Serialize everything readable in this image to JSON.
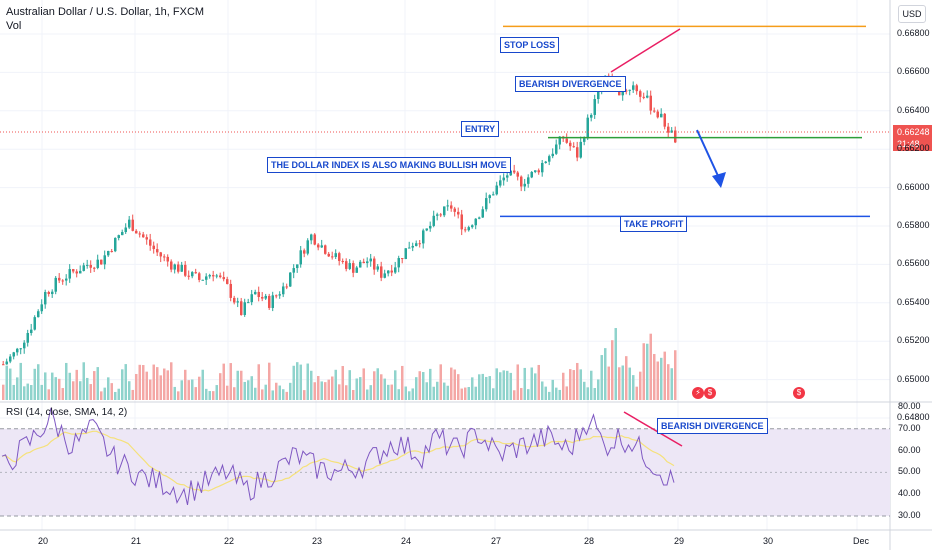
{
  "header": {
    "title": "Australian Dollar / U.S. Dollar, 1h, FXCM",
    "volume_label": "Vol",
    "rsi_label": "RSI (14, close, SMA, 14, 2)",
    "currency_button": "USD"
  },
  "current_price": {
    "value": "0.66248",
    "countdown": "21:48"
  },
  "annotations": {
    "stop_loss": "STOP LOSS",
    "bearish_divergence_price": "BEARISH DIVERGENCE",
    "entry": "ENTRY",
    "dollar_index": "THE DOLLAR INDEX IS ALSO MAKING BULLISH MOVE",
    "take_profit": "TAKE PROFIT",
    "bearish_divergence_rsi": "BEARISH DIVERGENCE"
  },
  "colors": {
    "up": "#26a69a",
    "down": "#ef5350",
    "vol_up": "#8fd3cc",
    "vol_down": "#f4a7a5",
    "stop_loss": "#f59d1a",
    "entry": "#2e9e3a",
    "take_profit": "#1e53e5",
    "divergence": "#e91e63",
    "rsi_line": "#7e57c2",
    "rsi_ma": "#f5e17a",
    "rsi_band": "#ede7f6"
  },
  "chart_data": {
    "type": "candlestick",
    "y_ticks": [
      "0.66800",
      "0.66600",
      "0.66400",
      "0.66200",
      "0.66000",
      "0.65800",
      "0.65600",
      "0.65400",
      "0.65200",
      "0.65000",
      "0.64800"
    ],
    "rsi_ticks": [
      "80.00",
      "70.00",
      "60.00",
      "50.00",
      "40.00",
      "30.00"
    ],
    "x_ticks": [
      "20",
      "21",
      "22",
      "23",
      "24",
      "27",
      "28",
      "29",
      "30",
      "Dec"
    ],
    "levels": {
      "stop_loss": 0.6684,
      "entry": 0.6626,
      "take_profit": 0.6585
    },
    "rsi_bands": [
      70,
      30
    ],
    "close_path": [
      [
        0,
        0.6508
      ],
      [
        4,
        0.6515
      ],
      [
        8,
        0.6528
      ],
      [
        12,
        0.6545
      ],
      [
        16,
        0.6552
      ],
      [
        20,
        0.6556
      ],
      [
        24,
        0.656
      ],
      [
        28,
        0.6562
      ],
      [
        32,
        0.6572
      ],
      [
        36,
        0.6582
      ],
      [
        40,
        0.6574
      ],
      [
        44,
        0.6566
      ],
      [
        48,
        0.656
      ],
      [
        52,
        0.6556
      ],
      [
        56,
        0.6552
      ],
      [
        60,
        0.6556
      ],
      [
        64,
        0.6548
      ],
      [
        68,
        0.6535
      ],
      [
        72,
        0.6545
      ],
      [
        76,
        0.654
      ],
      [
        80,
        0.6548
      ],
      [
        84,
        0.6562
      ],
      [
        88,
        0.6575
      ],
      [
        92,
        0.6568
      ],
      [
        96,
        0.6562
      ],
      [
        100,
        0.6558
      ],
      [
        104,
        0.6562
      ],
      [
        108,
        0.6555
      ],
      [
        112,
        0.656
      ],
      [
        116,
        0.657
      ],
      [
        120,
        0.6575
      ],
      [
        124,
        0.6585
      ],
      [
        128,
        0.659
      ],
      [
        132,
        0.6578
      ],
      [
        136,
        0.6587
      ],
      [
        140,
        0.6598
      ],
      [
        144,
        0.6607
      ],
      [
        148,
        0.6603
      ],
      [
        152,
        0.6608
      ],
      [
        156,
        0.6617
      ],
      [
        160,
        0.6626
      ],
      [
        164,
        0.6617
      ],
      [
        168,
        0.664
      ],
      [
        172,
        0.6658
      ],
      [
        176,
        0.665
      ],
      [
        180,
        0.6653
      ],
      [
        184,
        0.6645
      ],
      [
        188,
        0.6636
      ],
      [
        192,
        0.6625
      ]
    ],
    "rsi_path": [
      [
        0,
        52
      ],
      [
        8,
        64
      ],
      [
        14,
        75
      ],
      [
        20,
        62
      ],
      [
        26,
        70
      ],
      [
        32,
        56
      ],
      [
        40,
        48
      ],
      [
        48,
        44
      ],
      [
        52,
        40
      ],
      [
        58,
        45
      ],
      [
        64,
        50
      ],
      [
        70,
        42
      ],
      [
        76,
        48
      ],
      [
        84,
        58
      ],
      [
        90,
        52
      ],
      [
        96,
        50
      ],
      [
        104,
        54
      ],
      [
        112,
        64
      ],
      [
        120,
        58
      ],
      [
        124,
        66
      ],
      [
        130,
        60
      ],
      [
        136,
        68
      ],
      [
        142,
        58
      ],
      [
        148,
        62
      ],
      [
        156,
        66
      ],
      [
        162,
        60
      ],
      [
        168,
        76
      ],
      [
        172,
        62
      ],
      [
        176,
        66
      ],
      [
        180,
        64
      ],
      [
        186,
        54
      ],
      [
        192,
        45
      ]
    ]
  }
}
